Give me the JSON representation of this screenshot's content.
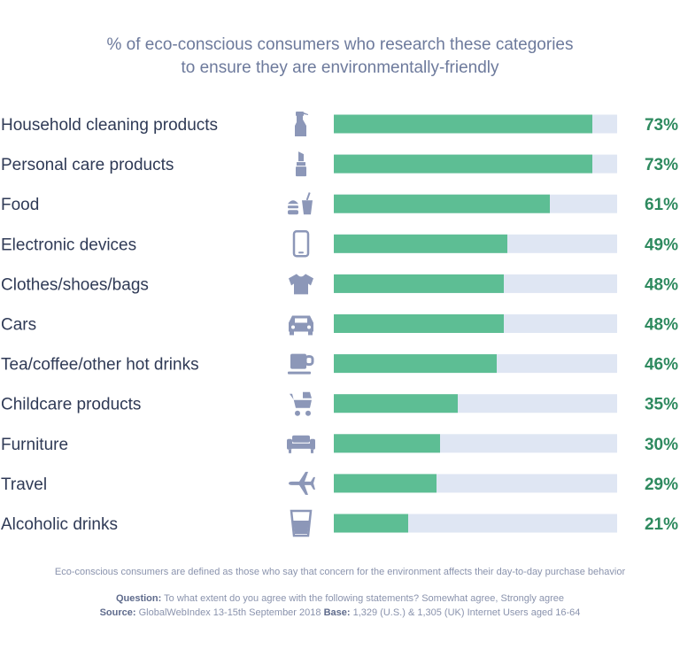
{
  "chart_data": {
    "type": "bar",
    "orientation": "horizontal",
    "title_lines": [
      "% of eco-conscious consumers who research these categories",
      "to ensure they are environmentally-friendly"
    ],
    "categories": [
      "Household cleaning products",
      "Personal care products",
      "Food",
      "Electronic devices",
      "Clothes/shoes/bags",
      "Cars",
      "Tea/coffee/other hot drinks",
      "Childcare products",
      "Furniture",
      "Travel",
      "Alcoholic drinks"
    ],
    "values": [
      73,
      73,
      61,
      49,
      48,
      48,
      46,
      35,
      30,
      29,
      21
    ],
    "value_labels": [
      "73%",
      "73%",
      "61%",
      "49%",
      "48%",
      "48%",
      "46%",
      "35%",
      "30%",
      "29%",
      "21%"
    ],
    "icons": [
      "spray-bottle-icon",
      "lipstick-icon",
      "burger-drink-icon",
      "smartphone-icon",
      "shirt-icon",
      "car-icon",
      "coffee-cup-icon",
      "pram-icon",
      "sofa-icon",
      "airplane-icon",
      "glass-icon"
    ],
    "xlim": [
      0,
      80
    ],
    "grid": false,
    "colors": {
      "bar": "#5dbe94",
      "track": "#dfe6f3",
      "value_text": "#2e8a5f",
      "label_text": "#2f3a56",
      "icon": "#8c97b8",
      "title": "#6d7a9c"
    }
  },
  "footnotes": {
    "definition": "Eco-conscious consumers are defined as those who say that concern for the environment affects their day-to-day purchase behavior",
    "question_label": "Question:",
    "question_text": "To what extent do you agree with the following statements? Somewhat agree, Strongly agree",
    "source_label": "Source:",
    "source_text": "GlobalWebIndex 13-15th September 2018",
    "base_label": "Base:",
    "base_text": "1,329 (U.S.) & 1,305 (UK) Internet Users aged 16-64"
  }
}
